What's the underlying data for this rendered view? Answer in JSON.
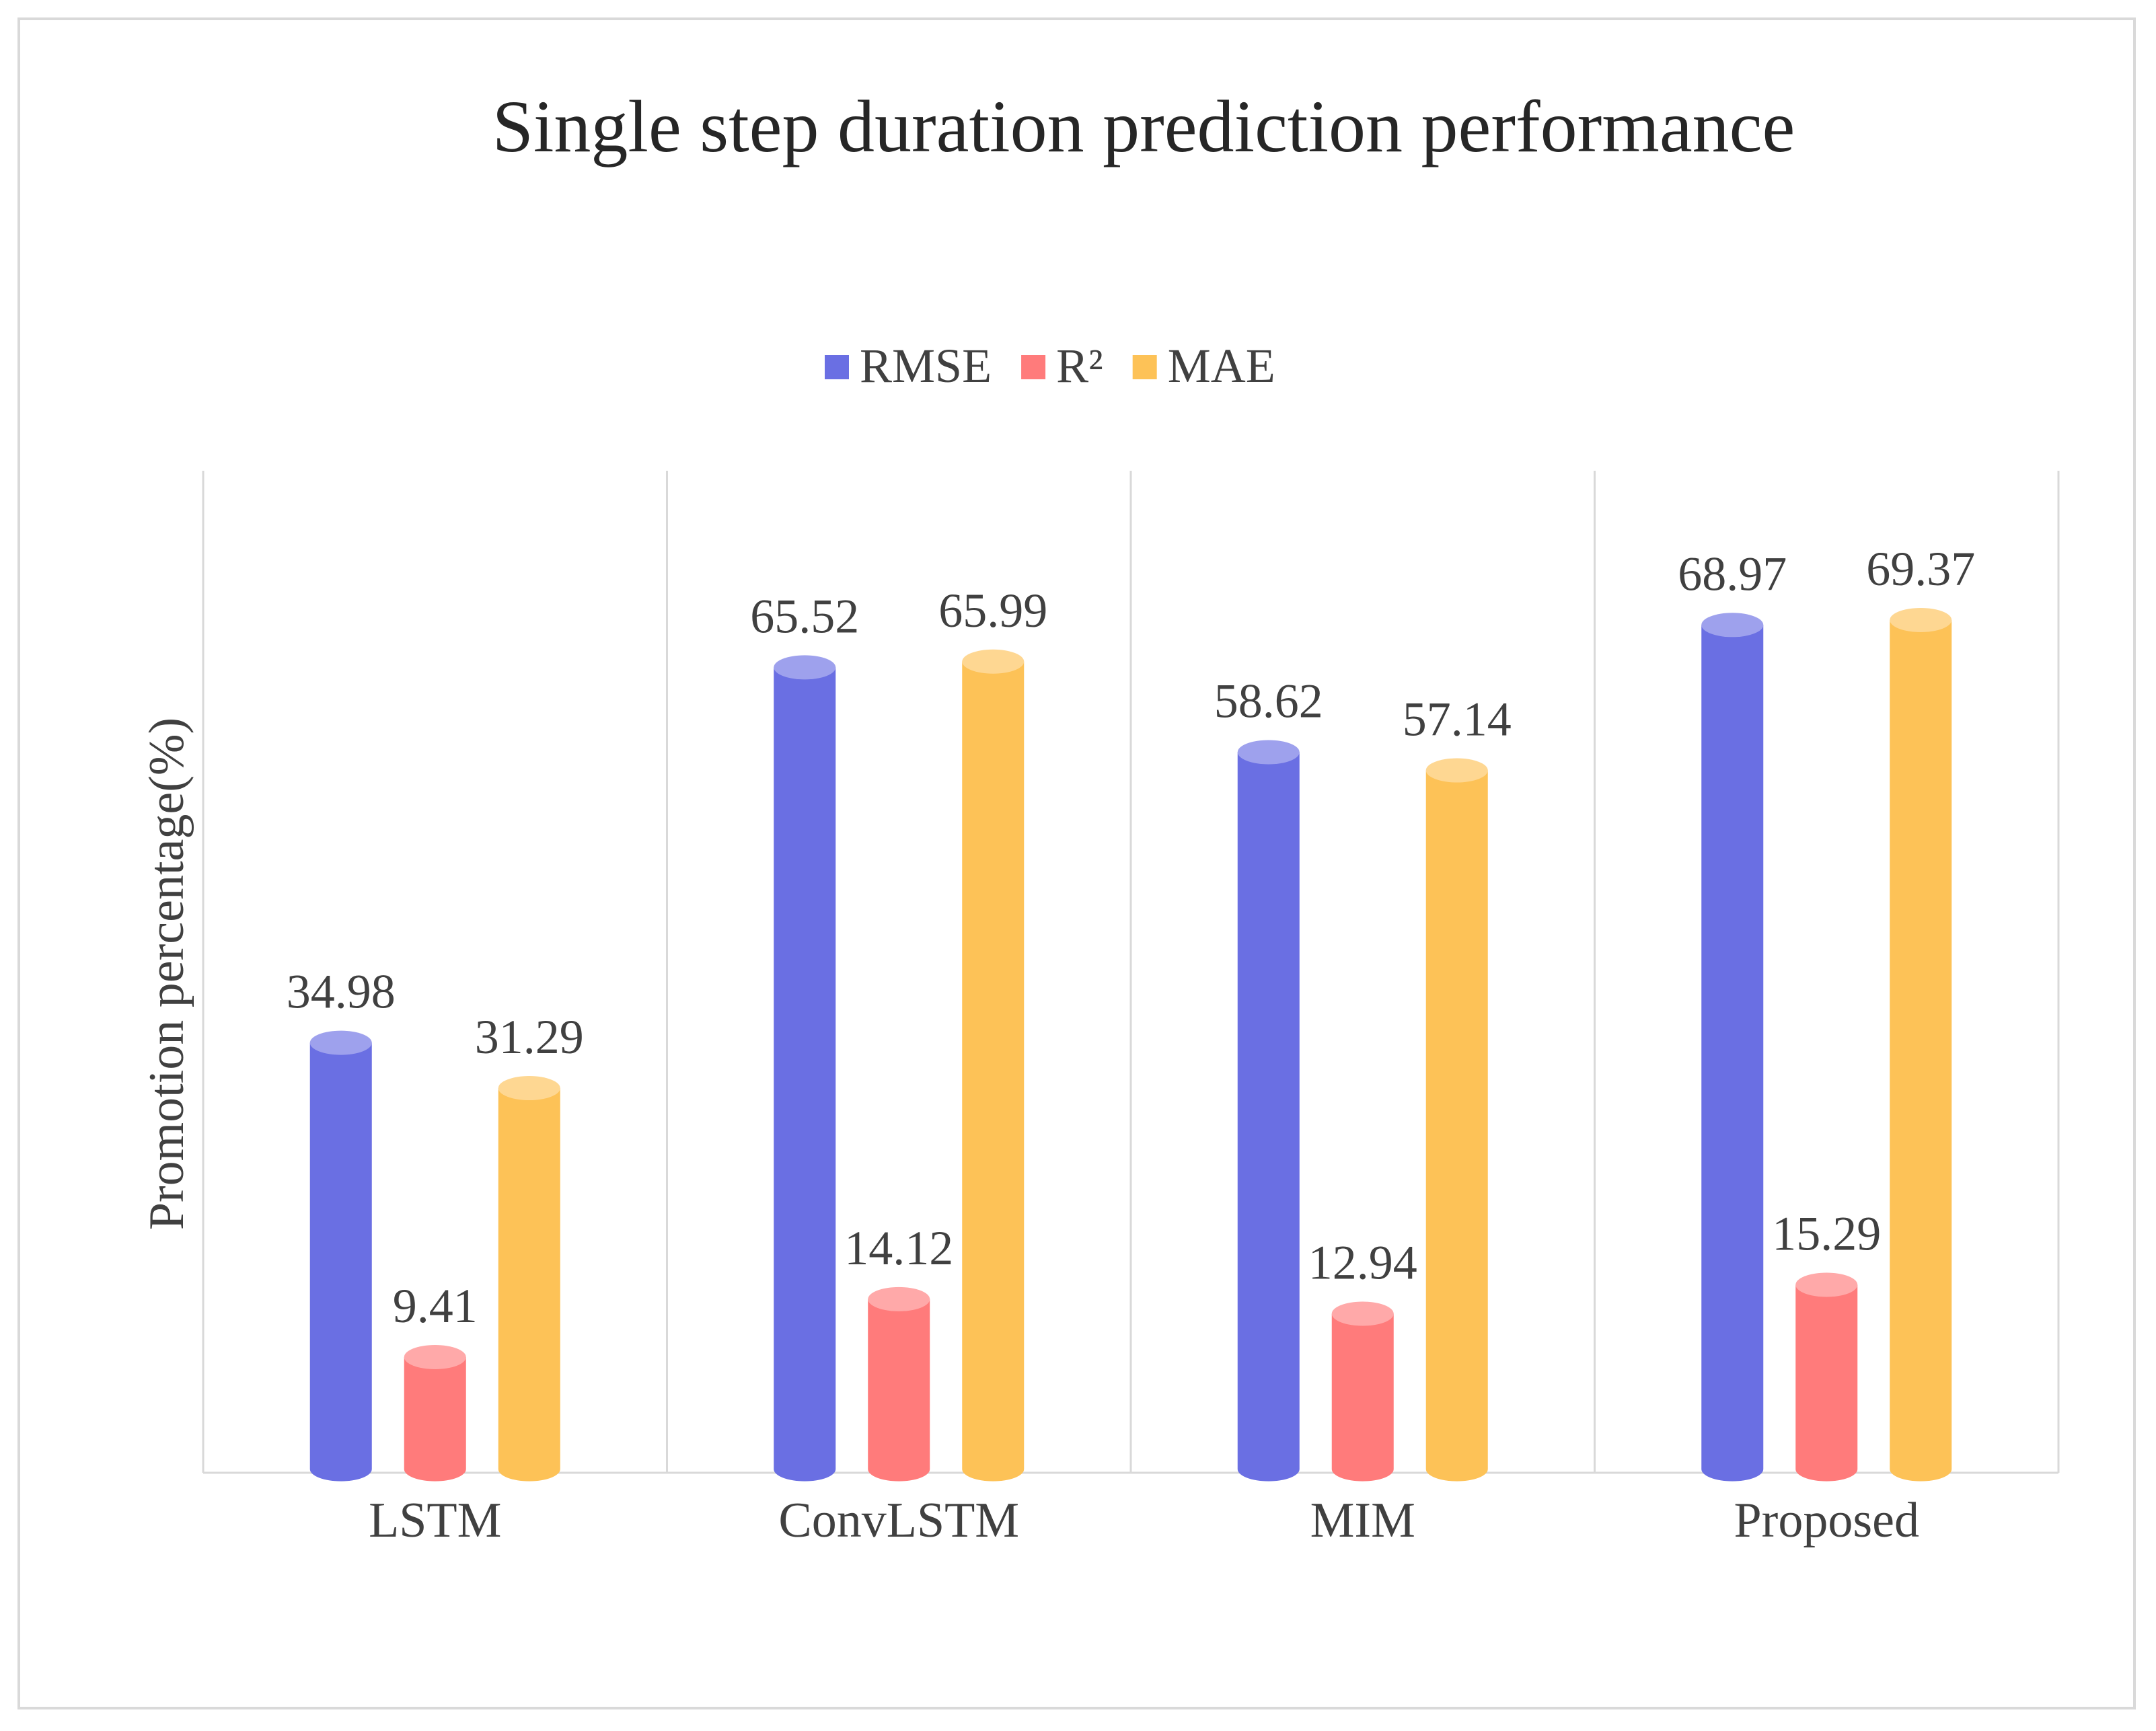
{
  "chart_data": {
    "type": "bar",
    "title": "Single step duration prediction performance",
    "ylabel": "Promotion percentage(%)",
    "xlabel": "",
    "categories": [
      "LSTM",
      "ConvLSTM",
      "MIM",
      "Proposed"
    ],
    "series": [
      {
        "name": "RMSE",
        "values": [
          34.98,
          65.52,
          58.62,
          68.97
        ],
        "labels": [
          "34.98",
          "65.52",
          "58.62",
          "68.97"
        ],
        "color": "#6a6fe3"
      },
      {
        "name": "R²",
        "values": [
          9.41,
          14.12,
          12.94,
          15.29
        ],
        "labels": [
          "9.41",
          "14.12",
          "12.94",
          "15.29"
        ],
        "color": "#ff7b7b"
      },
      {
        "name": "MAE",
        "values": [
          31.29,
          65.99,
          57.14,
          69.37
        ],
        "labels": [
          "31.29",
          "65.99",
          "57.14",
          "69.37"
        ],
        "color": "#fdc257"
      }
    ],
    "ylim": [
      0,
      69.37
    ],
    "grid": false,
    "legend": "top",
    "bar_style": "cylinder"
  }
}
